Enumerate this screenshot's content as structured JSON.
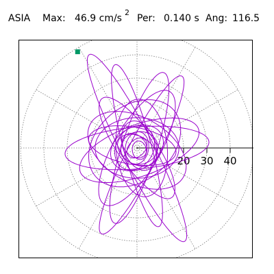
{
  "header": {
    "station": "ASIA",
    "max_label": "Max:",
    "max_value": "46.9 cm/s",
    "max_exp": "2",
    "per_label": "Per:",
    "per_value": "0.140 s",
    "ang_label": "Ang:",
    "ang_value": "116.5"
  },
  "chart_data": {
    "type": "line",
    "title": "ASIA Max: 46.9 cm/s2 Per: 0.140 s Ang: 116.5",
    "coordinate_system": "polar grid with horizontal cartesian axis",
    "radial_rings": [
      10,
      20,
      30,
      40,
      50
    ],
    "radial_spokes_deg": [
      0,
      30,
      60,
      90,
      120,
      150,
      180,
      210,
      240,
      270,
      300,
      330
    ],
    "axis_ticks": [
      10,
      20,
      30,
      40
    ],
    "axis_tick_labels": [
      "20",
      "30",
      "40"
    ],
    "xlim": [
      -50,
      50
    ],
    "ylim": [
      -50,
      50
    ],
    "grid": true,
    "trace_color": "#9900cc",
    "marker": {
      "x": -25.5,
      "y": 41.3,
      "color": "#009966",
      "shape": "square"
    },
    "series": [
      {
        "type": "loop",
        "cx": 0,
        "cy": 0,
        "a": 45.0,
        "b": 7.0,
        "rot_deg": 117,
        "dx": 0,
        "dy": 0
      },
      {
        "type": "loop",
        "cx": 2,
        "cy": -3,
        "a": 38.0,
        "b": 6.5,
        "rot_deg": 63,
        "dx": 0,
        "dy": 0
      },
      {
        "type": "loop",
        "cx": 1,
        "cy": 0,
        "a": 34.0,
        "b": 7.5,
        "rot_deg": 72,
        "dx": 0,
        "dy": 0
      },
      {
        "type": "loop",
        "cx": 0,
        "cy": 1,
        "a": 36.0,
        "b": 6.0,
        "rot_deg": 105,
        "dx": 0,
        "dy": 0
      },
      {
        "type": "loop",
        "cx": 0,
        "cy": 0,
        "a": 31.0,
        "b": 9.0,
        "rot_deg": 5,
        "dx": 0,
        "dy": 0
      },
      {
        "type": "loop",
        "cx": 1,
        "cy": -1,
        "a": 27.0,
        "b": 11.0,
        "rot_deg": 20,
        "dx": 0,
        "dy": 0
      },
      {
        "type": "loop",
        "cx": 0,
        "cy": -1,
        "a": 23.0,
        "b": 14.0,
        "rot_deg": 150,
        "dx": 0,
        "dy": 0
      },
      {
        "type": "loop",
        "cx": -1,
        "cy": 2,
        "a": 22.0,
        "b": 16.0,
        "rot_deg": 40,
        "dx": 0,
        "dy": 0
      },
      {
        "type": "loop",
        "cx": 0,
        "cy": 0,
        "a": 28.0,
        "b": 10.0,
        "rot_deg": 60,
        "dx": 0,
        "dy": 0
      },
      {
        "type": "loop",
        "cx": 0,
        "cy": 0,
        "a": 26.0,
        "b": 8.0,
        "rot_deg": 125,
        "dx": 0,
        "dy": 0
      },
      {
        "type": "loop",
        "cx": 2,
        "cy": 0,
        "a": 21.0,
        "b": 11.0,
        "rot_deg": 95,
        "dx": 0,
        "dy": 0
      },
      {
        "type": "loop",
        "cx": 0,
        "cy": 0,
        "a": 18.0,
        "b": 13.0,
        "rot_deg": 0,
        "dx": 0,
        "dy": 0
      },
      {
        "type": "loop",
        "cx": -2,
        "cy": 1,
        "a": 19.0,
        "b": 8.0,
        "rot_deg": 170,
        "dx": 0,
        "dy": 0
      },
      {
        "type": "loop",
        "cx": 0,
        "cy": 0,
        "a": 12.0,
        "b": 9.0,
        "rot_deg": 30,
        "dx": 0,
        "dy": 0
      },
      {
        "type": "loop",
        "cx": 1,
        "cy": 1,
        "a": 11.0,
        "b": 7.0,
        "rot_deg": 110,
        "dx": 0,
        "dy": 0
      },
      {
        "type": "loop",
        "cx": -1,
        "cy": 0,
        "a": 10.0,
        "b": 8.0,
        "rot_deg": 60,
        "dx": 0,
        "dy": 0
      },
      {
        "type": "loop",
        "cx": 0,
        "cy": -1,
        "a": 9.0,
        "b": 6.0,
        "rot_deg": 150,
        "dx": 0,
        "dy": 0
      },
      {
        "type": "loop",
        "cx": 1,
        "cy": 0,
        "a": 8.0,
        "b": 7.0,
        "rot_deg": 10,
        "dx": 0,
        "dy": 0
      },
      {
        "type": "loop",
        "cx": 0,
        "cy": 0,
        "a": 7.0,
        "b": 5.0,
        "rot_deg": 80,
        "dx": 0,
        "dy": 0
      },
      {
        "type": "loop",
        "cx": -1,
        "cy": 1,
        "a": 6.0,
        "b": 4.5,
        "rot_deg": 135,
        "dx": 0,
        "dy": 0
      },
      {
        "type": "loop",
        "cx": 0,
        "cy": 0,
        "a": 5.0,
        "b": 3.5,
        "rot_deg": 45,
        "dx": 0,
        "dy": 0
      },
      {
        "type": "loop",
        "cx": 1,
        "cy": -1,
        "a": 4.0,
        "b": 3.0,
        "rot_deg": 100,
        "dx": 0,
        "dy": 0
      }
    ]
  }
}
